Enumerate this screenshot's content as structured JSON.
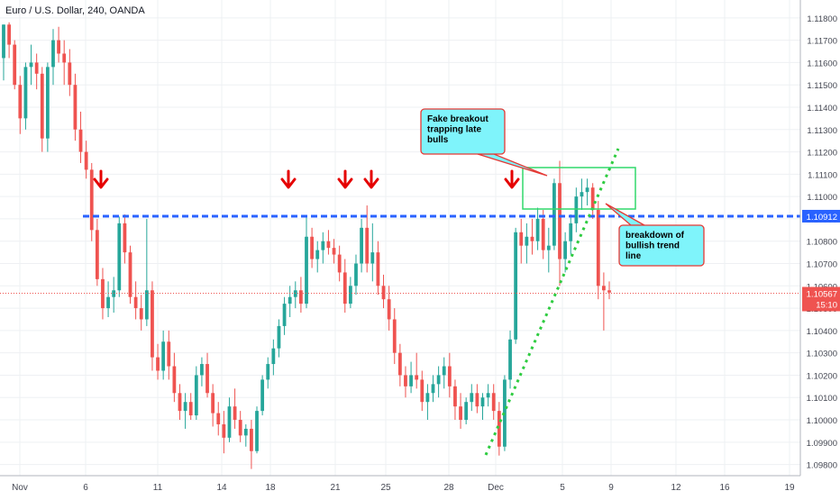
{
  "title": "Euro / U.S. Dollar, 240, OANDA",
  "colors": {
    "up": "#26a69a",
    "down": "#ef5350",
    "grid": "#eef0f3",
    "level_line": "#2962ff",
    "trend_line": "#2ecc40",
    "box": "#31d96b",
    "callout_fill": "#7ff4fb",
    "callout_border": "#e53935",
    "arrow": "#e50000",
    "price_line": "#ef5350",
    "axis_text": "#434651"
  },
  "chart_data": {
    "type": "candlestick",
    "symbol": "Euro / U.S. Dollar",
    "timeframe": "240",
    "source": "OANDA",
    "x_tick_labels": [
      "Nov",
      "6",
      "11",
      "14",
      "18",
      "21",
      "25",
      "28",
      "Dec",
      "5",
      "9",
      "12",
      "16",
      "19"
    ],
    "y_tick_labels": [
      "1.09800",
      "1.09900",
      "1.10000",
      "1.10100",
      "1.10200",
      "1.10300",
      "1.10400",
      "1.10500",
      "1.10600",
      "1.10700",
      "1.10800",
      "1.10900",
      "1.11000",
      "1.11100",
      "1.11200",
      "1.11300",
      "1.11400",
      "1.11500",
      "1.11600",
      "1.11700",
      "1.11800"
    ],
    "ylim": [
      1.0975,
      1.1188
    ],
    "price_labels": {
      "level": "1.10912",
      "current": "1.10567",
      "countdown": "15:10"
    },
    "levels": {
      "resistance": 1.10912,
      "current": 1.10567
    },
    "annotations": [
      {
        "id": "fake-breakout",
        "text_lines": [
          "Fake breakout",
          "trapping late",
          "bulls"
        ]
      },
      {
        "id": "breakdown",
        "text_lines": [
          "breakdown of",
          "bullish trend",
          "line"
        ]
      }
    ],
    "candles": [
      [
        1.1162,
        1.1177,
        1.1152,
        1.1177
      ],
      [
        1.1177,
        1.1178,
        1.1162,
        1.1168
      ],
      [
        1.1168,
        1.117,
        1.1148,
        1.115
      ],
      [
        1.115,
        1.1154,
        1.1128,
        1.1135
      ],
      [
        1.1135,
        1.116,
        1.113,
        1.1158
      ],
      [
        1.1158,
        1.1168,
        1.115,
        1.116
      ],
      [
        1.116,
        1.1164,
        1.1148,
        1.1155
      ],
      [
        1.1155,
        1.1158,
        1.112,
        1.1126
      ],
      [
        1.1126,
        1.116,
        1.112,
        1.1158
      ],
      [
        1.1158,
        1.1175,
        1.115,
        1.117
      ],
      [
        1.117,
        1.1176,
        1.116,
        1.1164
      ],
      [
        1.1164,
        1.117,
        1.115,
        1.116
      ],
      [
        1.116,
        1.1166,
        1.1145,
        1.115
      ],
      [
        1.115,
        1.1155,
        1.1125,
        1.113
      ],
      [
        1.113,
        1.1138,
        1.1115,
        1.112
      ],
      [
        1.112,
        1.1125,
        1.1108,
        1.1112
      ],
      [
        1.1112,
        1.1115,
        1.108,
        1.1085
      ],
      [
        1.1085,
        1.109,
        1.106,
        1.1063
      ],
      [
        1.1063,
        1.1068,
        1.1045,
        1.105
      ],
      [
        1.105,
        1.1062,
        1.1046,
        1.1055
      ],
      [
        1.1055,
        1.1064,
        1.1048,
        1.1058
      ],
      [
        1.1058,
        1.1091,
        1.1055,
        1.1088
      ],
      [
        1.1088,
        1.1092,
        1.107,
        1.1075
      ],
      [
        1.1075,
        1.1078,
        1.1052,
        1.1055
      ],
      [
        1.1055,
        1.1062,
        1.1045,
        1.105
      ],
      [
        1.105,
        1.1056,
        1.104,
        1.1045
      ],
      [
        1.1045,
        1.109,
        1.1042,
        1.1058
      ],
      [
        1.1058,
        1.1062,
        1.1022,
        1.1028
      ],
      [
        1.1028,
        1.1034,
        1.1018,
        1.1022
      ],
      [
        1.1022,
        1.104,
        1.1018,
        1.1035
      ],
      [
        1.1035,
        1.104,
        1.1018,
        1.1024
      ],
      [
        1.1024,
        1.103,
        1.1008,
        1.1012
      ],
      [
        1.1012,
        1.1016,
        1.1,
        1.1004
      ],
      [
        1.1004,
        1.1012,
        1.0996,
        1.1008
      ],
      [
        1.1008,
        1.1012,
        1.1,
        1.1002
      ],
      [
        1.1002,
        1.1024,
        1.1,
        1.102
      ],
      [
        1.102,
        1.1028,
        1.1015,
        1.1025
      ],
      [
        1.1025,
        1.103,
        1.101,
        1.1012
      ],
      [
        1.1012,
        1.1016,
        1.0997,
        1.1003
      ],
      [
        1.1003,
        1.1008,
        1.0993,
        1.0998
      ],
      [
        1.0998,
        1.1004,
        1.0985,
        1.0992
      ],
      [
        1.0992,
        1.101,
        1.099,
        1.1006
      ],
      [
        1.1006,
        1.1014,
        1.0996,
        1.1
      ],
      [
        1.1,
        1.1004,
        1.099,
        1.0993
      ],
      [
        1.0993,
        1.0998,
        1.0988,
        1.0996
      ],
      [
        1.0996,
        1.1,
        1.0978,
        1.0986
      ],
      [
        1.0986,
        1.1006,
        1.0985,
        1.1004
      ],
      [
        1.1004,
        1.102,
        1.1002,
        1.1018
      ],
      [
        1.1018,
        1.1028,
        1.1014,
        1.1025
      ],
      [
        1.1025,
        1.1036,
        1.102,
        1.1032
      ],
      [
        1.1032,
        1.1045,
        1.1028,
        1.1042
      ],
      [
        1.1042,
        1.1055,
        1.1038,
        1.1052
      ],
      [
        1.1052,
        1.106,
        1.1046,
        1.1055
      ],
      [
        1.1055,
        1.1062,
        1.105,
        1.1058
      ],
      [
        1.1058,
        1.1064,
        1.1048,
        1.1052
      ],
      [
        1.1052,
        1.1091,
        1.105,
        1.1082
      ],
      [
        1.1082,
        1.1086,
        1.1068,
        1.1072
      ],
      [
        1.1072,
        1.108,
        1.1066,
        1.1076
      ],
      [
        1.1076,
        1.1084,
        1.107,
        1.108
      ],
      [
        1.108,
        1.1085,
        1.1074,
        1.1077
      ],
      [
        1.1077,
        1.1081,
        1.107,
        1.1074
      ],
      [
        1.1074,
        1.1078,
        1.1062,
        1.1066
      ],
      [
        1.1066,
        1.1072,
        1.1048,
        1.1052
      ],
      [
        1.1052,
        1.1064,
        1.105,
        1.106
      ],
      [
        1.106,
        1.1074,
        1.1056,
        1.107
      ],
      [
        1.107,
        1.109,
        1.1066,
        1.1086
      ],
      [
        1.1086,
        1.1096,
        1.1066,
        1.107
      ],
      [
        1.107,
        1.1088,
        1.1062,
        1.1075
      ],
      [
        1.1075,
        1.108,
        1.1056,
        1.106
      ],
      [
        1.106,
        1.1065,
        1.105,
        1.1054
      ],
      [
        1.1054,
        1.106,
        1.104,
        1.1045
      ],
      [
        1.1045,
        1.105,
        1.1025,
        1.103
      ],
      [
        1.103,
        1.1034,
        1.1015,
        1.102
      ],
      [
        1.102,
        1.1024,
        1.101,
        1.1015
      ],
      [
        1.1015,
        1.1026,
        1.1012,
        1.102
      ],
      [
        1.102,
        1.103,
        1.1014,
        1.1018
      ],
      [
        1.1018,
        1.1022,
        1.1004,
        1.1008
      ],
      [
        1.1008,
        1.1016,
        1.1,
        1.1012
      ],
      [
        1.1012,
        1.102,
        1.1008,
        1.1016
      ],
      [
        1.1016,
        1.1024,
        1.101,
        1.102
      ],
      [
        1.102,
        1.1028,
        1.1014,
        1.1024
      ],
      [
        1.1024,
        1.103,
        1.101,
        1.1015
      ],
      [
        1.1015,
        1.1018,
        1.1,
        1.1006
      ],
      [
        1.1006,
        1.1012,
        1.0996,
        1.1
      ],
      [
        1.1,
        1.101,
        1.0998,
        1.1008
      ],
      [
        1.1008,
        1.1016,
        1.1004,
        1.1012
      ],
      [
        1.1012,
        1.1016,
        1.1003,
        1.1006
      ],
      [
        1.1006,
        1.1012,
        1.1,
        1.101
      ],
      [
        1.101,
        1.1016,
        1.1006,
        1.1012
      ],
      [
        1.1012,
        1.1016,
        1.1,
        1.1004
      ],
      [
        1.1004,
        1.1008,
        1.0984,
        1.0988
      ],
      [
        1.0988,
        1.102,
        1.0986,
        1.1018
      ],
      [
        1.1018,
        1.104,
        1.1014,
        1.1036
      ],
      [
        1.1036,
        1.1086,
        1.1034,
        1.1084
      ],
      [
        1.1084,
        1.109,
        1.107,
        1.1078
      ],
      [
        1.1078,
        1.1088,
        1.107,
        1.1082
      ],
      [
        1.1082,
        1.109,
        1.1074,
        1.108
      ],
      [
        1.108,
        1.1095,
        1.1076,
        1.109
      ],
      [
        1.109,
        1.1094,
        1.1072,
        1.1076
      ],
      [
        1.1076,
        1.1086,
        1.1066,
        1.1078
      ],
      [
        1.1078,
        1.1108,
        1.1076,
        1.1106
      ],
      [
        1.1106,
        1.1116,
        1.106,
        1.1072
      ],
      [
        1.1072,
        1.1084,
        1.1066,
        1.108
      ],
      [
        1.108,
        1.1092,
        1.1074,
        1.1088
      ],
      [
        1.1088,
        1.1104,
        1.1084,
        1.11
      ],
      [
        1.11,
        1.1108,
        1.1094,
        1.1102
      ],
      [
        1.1102,
        1.1108,
        1.1096,
        1.1104
      ],
      [
        1.1104,
        1.1106,
        1.109,
        1.1094
      ],
      [
        1.1094,
        1.1098,
        1.1054,
        1.106
      ],
      [
        1.106,
        1.1066,
        1.104,
        1.1058
      ],
      [
        1.1058,
        1.1062,
        1.1054,
        1.1057
      ]
    ]
  }
}
